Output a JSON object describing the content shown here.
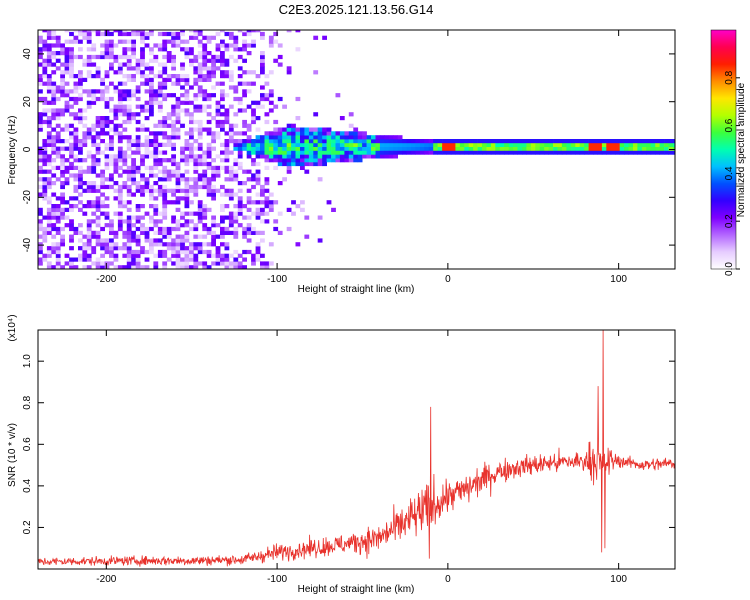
{
  "title": "C2E3.2025.121.13.56.G14",
  "colors": {
    "snr_line": "#e8322c",
    "colormap": [
      "#ffffff",
      "#e6ccff",
      "#b366ff",
      "#7f00ff",
      "#3300ff",
      "#0050ff",
      "#00c0ff",
      "#00ffb0",
      "#3cff3c",
      "#b4ff00",
      "#ffe600",
      "#ff8c00",
      "#ff1e00",
      "#ff0050",
      "#ff00c8"
    ]
  },
  "chart_data": [
    {
      "type": "heatmap",
      "xlabel": "Height of straight line (km)",
      "ylabel": "Frequency (Hz)",
      "xlim": [
        -240,
        133
      ],
      "ylim": [
        -50,
        50
      ],
      "xticks": [
        -200,
        -100,
        0,
        100
      ],
      "xtick_labels": [
        "-200",
        "-100",
        "0",
        "100"
      ],
      "yticks": [
        -40,
        -20,
        0,
        20,
        40
      ],
      "ytick_labels": [
        "-40",
        "-20",
        "0",
        "20",
        "40"
      ],
      "colorbar": {
        "label": "Normalized spectral amplitude",
        "range": [
          0,
          1
        ],
        "ticks": [
          0,
          0.2,
          0.4,
          0.6,
          0.8
        ],
        "tick_labels": [
          "0.0",
          "0.2",
          "0.4",
          "0.6",
          "0.8"
        ]
      },
      "features": {
        "noise_region_x": [
          -240,
          -100
        ],
        "sparse_noise_x": [
          -100,
          -50
        ],
        "spreading_region_x": [
          -130,
          -10
        ],
        "narrow_line_x": [
          -10,
          133
        ],
        "line_center_freq": 0.5,
        "peak_spots_x": [
          0,
          85,
          95
        ]
      }
    },
    {
      "type": "line",
      "xlabel": "Height of straight line (km)",
      "ylabel": "SNR (10 * v/v)",
      "y_multiplier": "(x10⁴)",
      "xlim": [
        -240,
        133
      ],
      "ylim": [
        0,
        1.15
      ],
      "xticks": [
        -200,
        -100,
        0,
        100
      ],
      "xtick_labels": [
        "-200",
        "-100",
        "0",
        "100"
      ],
      "yticks": [
        0.2,
        0.4,
        0.6,
        0.8,
        1.0
      ],
      "ytick_labels": [
        "0.2",
        "0.4",
        "0.6",
        "0.8",
        "1.0"
      ],
      "series": [
        {
          "baseline_x": [
            -240,
            -180,
            -150,
            -120,
            -100,
            -80,
            -60,
            -40,
            -30,
            -20,
            -10,
            0,
            10,
            20,
            30,
            40,
            60,
            80,
            85,
            90,
            95,
            100,
            115,
            133
          ],
          "baseline_y": [
            0.035,
            0.04,
            0.04,
            0.045,
            0.08,
            0.1,
            0.12,
            0.15,
            0.2,
            0.25,
            0.3,
            0.35,
            0.38,
            0.43,
            0.47,
            0.49,
            0.51,
            0.52,
            0.53,
            0.5,
            0.52,
            0.52,
            0.5,
            0.51
          ],
          "noise_x": [
            -240,
            -120,
            -100,
            -60,
            -30,
            -15,
            -10,
            0,
            20,
            40,
            80,
            85,
            95,
            100,
            133
          ],
          "noise_amp": [
            0.02,
            0.025,
            0.04,
            0.05,
            0.08,
            0.12,
            0.12,
            0.08,
            0.07,
            0.05,
            0.05,
            0.1,
            0.06,
            0.03,
            0.03
          ],
          "spikes": [
            {
              "x": -10,
              "y": 0.78
            },
            {
              "x": -11,
              "y": 0.05
            },
            {
              "x": 88,
              "y": 0.88
            },
            {
              "x": 90,
              "y": 0.08
            },
            {
              "x": 91,
              "y": 1.16
            },
            {
              "x": 92,
              "y": 0.1
            }
          ]
        }
      ]
    }
  ]
}
